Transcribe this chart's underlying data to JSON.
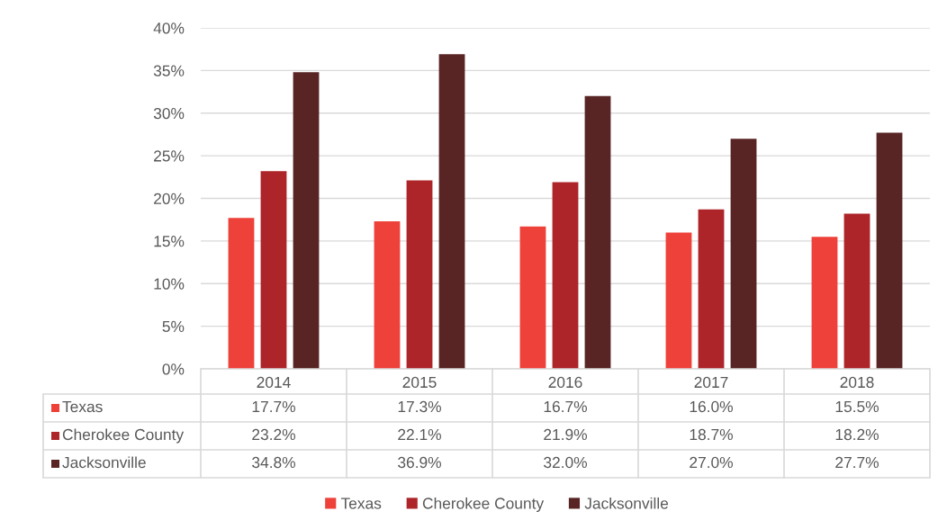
{
  "chart_data": {
    "type": "bar",
    "categories": [
      "2014",
      "2015",
      "2016",
      "2017",
      "2018"
    ],
    "series": [
      {
        "name": "Texas",
        "color": "#ee4139",
        "values": [
          17.7,
          17.3,
          16.7,
          16.0,
          15.5
        ],
        "value_labels": [
          "17.7%",
          "17.3%",
          "16.7%",
          "16.0%",
          "15.5%"
        ]
      },
      {
        "name": "Cherokee County",
        "color": "#ad2429",
        "values": [
          23.2,
          22.1,
          21.9,
          18.7,
          18.2
        ],
        "value_labels": [
          "23.2%",
          "22.1%",
          "21.9%",
          "18.7%",
          "18.2%"
        ]
      },
      {
        "name": "Jacksonville",
        "color": "#582524",
        "values": [
          34.8,
          36.9,
          32.0,
          27.0,
          27.7
        ],
        "value_labels": [
          "34.8%",
          "36.9%",
          "32.0%",
          "27.0%",
          "27.7%"
        ]
      }
    ],
    "ylim": [
      0,
      40
    ],
    "yticks": [
      {
        "value": 0,
        "label": "0%"
      },
      {
        "value": 5,
        "label": "5%"
      },
      {
        "value": 10,
        "label": "10%"
      },
      {
        "value": 15,
        "label": "15%"
      },
      {
        "value": 20,
        "label": "20%"
      },
      {
        "value": 25,
        "label": "25%"
      },
      {
        "value": 30,
        "label": "30%"
      },
      {
        "value": 35,
        "label": "35%"
      },
      {
        "value": 40,
        "label": "40%"
      }
    ],
    "grid": "y",
    "legend": "bottom"
  }
}
